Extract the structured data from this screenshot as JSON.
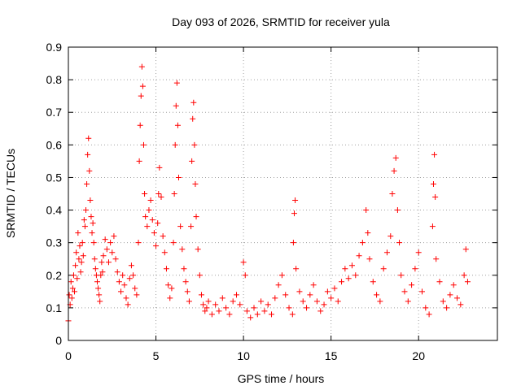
{
  "chart_data": {
    "type": "scatter",
    "title": "Day 093 of 2026, SRMTID for receiver yula",
    "xlabel": "GPS time / hours",
    "ylabel": "SRMTID / TECUs",
    "xlim": [
      0,
      24.5
    ],
    "ylim": [
      0,
      0.9
    ],
    "xticks": [
      0,
      5,
      10,
      15,
      20
    ],
    "yticks": [
      0,
      0.1,
      0.2,
      0.3,
      0.4,
      0.5,
      0.6,
      0.7,
      0.8,
      0.9
    ],
    "xtick_labels": [
      "0",
      "5",
      "10",
      "15",
      "20"
    ],
    "ytick_labels": [
      "0",
      "0.1",
      "0.2",
      "0.3",
      "0.4",
      "0.5",
      "0.6",
      "0.7",
      "0.8",
      "0.9"
    ],
    "grid": true,
    "marker": "plus",
    "color": "#ff0000",
    "series": [
      {
        "name": "SRMTID",
        "points": [
          [
            0.0,
            0.06
          ],
          [
            0.05,
            0.14
          ],
          [
            0.1,
            0.11
          ],
          [
            0.15,
            0.18
          ],
          [
            0.2,
            0.13
          ],
          [
            0.25,
            0.16
          ],
          [
            0.3,
            0.2
          ],
          [
            0.35,
            0.15
          ],
          [
            0.4,
            0.23
          ],
          [
            0.45,
            0.27
          ],
          [
            0.5,
            0.19
          ],
          [
            0.55,
            0.33
          ],
          [
            0.6,
            0.25
          ],
          [
            0.65,
            0.29
          ],
          [
            0.7,
            0.21
          ],
          [
            0.75,
            0.24
          ],
          [
            0.8,
            0.3
          ],
          [
            0.85,
            0.26
          ],
          [
            0.9,
            0.37
          ],
          [
            0.95,
            0.35
          ],
          [
            1.0,
            0.4
          ],
          [
            1.05,
            0.48
          ],
          [
            1.1,
            0.57
          ],
          [
            1.15,
            0.62
          ],
          [
            1.2,
            0.52
          ],
          [
            1.25,
            0.43
          ],
          [
            1.3,
            0.38
          ],
          [
            1.35,
            0.33
          ],
          [
            1.4,
            0.36
          ],
          [
            1.45,
            0.3
          ],
          [
            1.5,
            0.25
          ],
          [
            1.55,
            0.22
          ],
          [
            1.6,
            0.2
          ],
          [
            1.65,
            0.18
          ],
          [
            1.7,
            0.16
          ],
          [
            1.75,
            0.14
          ],
          [
            1.8,
            0.12
          ],
          [
            1.85,
            0.2
          ],
          [
            1.9,
            0.24
          ],
          [
            1.95,
            0.21
          ],
          [
            2.0,
            0.26
          ],
          [
            2.1,
            0.31
          ],
          [
            2.2,
            0.28
          ],
          [
            2.3,
            0.24
          ],
          [
            2.4,
            0.3
          ],
          [
            2.5,
            0.27
          ],
          [
            2.6,
            0.32
          ],
          [
            2.7,
            0.25
          ],
          [
            2.8,
            0.21
          ],
          [
            2.9,
            0.18
          ],
          [
            3.0,
            0.15
          ],
          [
            3.1,
            0.2
          ],
          [
            3.2,
            0.17
          ],
          [
            3.3,
            0.13
          ],
          [
            3.4,
            0.11
          ],
          [
            3.5,
            0.19
          ],
          [
            3.6,
            0.23
          ],
          [
            3.7,
            0.2
          ],
          [
            3.8,
            0.16
          ],
          [
            3.9,
            0.14
          ],
          [
            4.0,
            0.3
          ],
          [
            4.05,
            0.55
          ],
          [
            4.1,
            0.66
          ],
          [
            4.15,
            0.75
          ],
          [
            4.2,
            0.84
          ],
          [
            4.25,
            0.78
          ],
          [
            4.3,
            0.6
          ],
          [
            4.35,
            0.45
          ],
          [
            4.4,
            0.38
          ],
          [
            4.5,
            0.35
          ],
          [
            4.6,
            0.4
          ],
          [
            4.7,
            0.43
          ],
          [
            4.8,
            0.37
          ],
          [
            4.9,
            0.33
          ],
          [
            5.0,
            0.29
          ],
          [
            5.1,
            0.36
          ],
          [
            5.15,
            0.45
          ],
          [
            5.2,
            0.53
          ],
          [
            5.3,
            0.44
          ],
          [
            5.4,
            0.32
          ],
          [
            5.5,
            0.27
          ],
          [
            5.6,
            0.22
          ],
          [
            5.7,
            0.17
          ],
          [
            5.8,
            0.13
          ],
          [
            5.9,
            0.16
          ],
          [
            6.0,
            0.3
          ],
          [
            6.05,
            0.45
          ],
          [
            6.1,
            0.6
          ],
          [
            6.15,
            0.72
          ],
          [
            6.2,
            0.79
          ],
          [
            6.25,
            0.66
          ],
          [
            6.3,
            0.5
          ],
          [
            6.4,
            0.35
          ],
          [
            6.5,
            0.28
          ],
          [
            6.6,
            0.22
          ],
          [
            6.7,
            0.18
          ],
          [
            6.8,
            0.15
          ],
          [
            6.9,
            0.12
          ],
          [
            7.0,
            0.35
          ],
          [
            7.05,
            0.55
          ],
          [
            7.1,
            0.68
          ],
          [
            7.15,
            0.73
          ],
          [
            7.2,
            0.6
          ],
          [
            7.25,
            0.48
          ],
          [
            7.3,
            0.38
          ],
          [
            7.4,
            0.28
          ],
          [
            7.5,
            0.2
          ],
          [
            7.6,
            0.14
          ],
          [
            7.7,
            0.11
          ],
          [
            7.8,
            0.09
          ],
          [
            7.9,
            0.1
          ],
          [
            8.0,
            0.12
          ],
          [
            8.2,
            0.08
          ],
          [
            8.4,
            0.11
          ],
          [
            8.6,
            0.09
          ],
          [
            8.8,
            0.13
          ],
          [
            9.0,
            0.1
          ],
          [
            9.2,
            0.08
          ],
          [
            9.4,
            0.12
          ],
          [
            9.6,
            0.14
          ],
          [
            9.8,
            0.11
          ],
          [
            10.0,
            0.24
          ],
          [
            10.1,
            0.2
          ],
          [
            10.2,
            0.09
          ],
          [
            10.4,
            0.07
          ],
          [
            10.6,
            0.1
          ],
          [
            10.8,
            0.08
          ],
          [
            11.0,
            0.12
          ],
          [
            11.2,
            0.09
          ],
          [
            11.4,
            0.11
          ],
          [
            11.6,
            0.08
          ],
          [
            11.8,
            0.13
          ],
          [
            12.0,
            0.17
          ],
          [
            12.2,
            0.2
          ],
          [
            12.4,
            0.14
          ],
          [
            12.6,
            0.1
          ],
          [
            12.8,
            0.08
          ],
          [
            12.85,
            0.3
          ],
          [
            12.9,
            0.39
          ],
          [
            12.95,
            0.43
          ],
          [
            13.0,
            0.22
          ],
          [
            13.2,
            0.15
          ],
          [
            13.4,
            0.12
          ],
          [
            13.6,
            0.1
          ],
          [
            13.8,
            0.14
          ],
          [
            14.0,
            0.17
          ],
          [
            14.2,
            0.12
          ],
          [
            14.4,
            0.09
          ],
          [
            14.6,
            0.11
          ],
          [
            14.8,
            0.15
          ],
          [
            15.0,
            0.13
          ],
          [
            15.2,
            0.16
          ],
          [
            15.4,
            0.12
          ],
          [
            15.6,
            0.18
          ],
          [
            15.8,
            0.22
          ],
          [
            16.0,
            0.19
          ],
          [
            16.2,
            0.23
          ],
          [
            16.4,
            0.2
          ],
          [
            16.6,
            0.26
          ],
          [
            16.8,
            0.3
          ],
          [
            17.0,
            0.4
          ],
          [
            17.1,
            0.33
          ],
          [
            17.2,
            0.25
          ],
          [
            17.4,
            0.18
          ],
          [
            17.6,
            0.14
          ],
          [
            17.8,
            0.12
          ],
          [
            18.0,
            0.22
          ],
          [
            18.2,
            0.27
          ],
          [
            18.4,
            0.32
          ],
          [
            18.5,
            0.45
          ],
          [
            18.6,
            0.52
          ],
          [
            18.7,
            0.56
          ],
          [
            18.8,
            0.4
          ],
          [
            18.9,
            0.3
          ],
          [
            19.0,
            0.2
          ],
          [
            19.2,
            0.15
          ],
          [
            19.4,
            0.12
          ],
          [
            19.6,
            0.17
          ],
          [
            19.8,
            0.22
          ],
          [
            20.0,
            0.27
          ],
          [
            20.2,
            0.15
          ],
          [
            20.4,
            0.1
          ],
          [
            20.6,
            0.08
          ],
          [
            20.8,
            0.35
          ],
          [
            20.85,
            0.48
          ],
          [
            20.9,
            0.57
          ],
          [
            20.95,
            0.44
          ],
          [
            21.0,
            0.25
          ],
          [
            21.2,
            0.18
          ],
          [
            21.4,
            0.12
          ],
          [
            21.6,
            0.1
          ],
          [
            21.8,
            0.14
          ],
          [
            22.0,
            0.17
          ],
          [
            22.2,
            0.13
          ],
          [
            22.4,
            0.11
          ],
          [
            22.6,
            0.2
          ],
          [
            22.7,
            0.28
          ],
          [
            22.8,
            0.18
          ]
        ]
      }
    ]
  }
}
